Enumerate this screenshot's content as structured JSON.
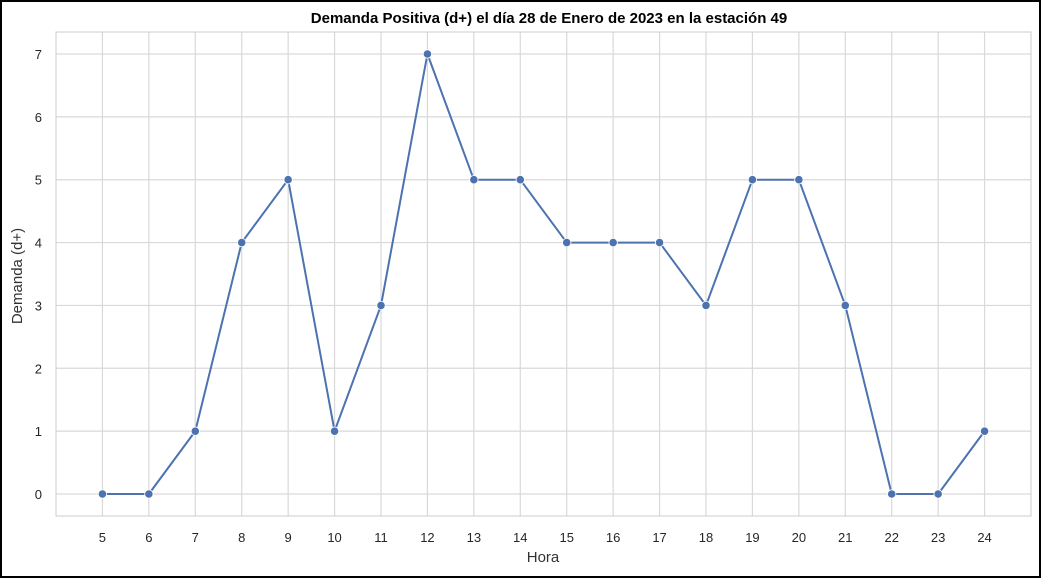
{
  "chart_data": {
    "type": "line",
    "title": "Demanda Positiva (d+) el día 28 de Enero de 2023 en la estación 49",
    "xlabel": "Hora",
    "ylabel": "Demanda (d+)",
    "x": [
      5,
      6,
      7,
      8,
      9,
      10,
      11,
      12,
      13,
      14,
      15,
      16,
      17,
      18,
      19,
      20,
      21,
      22,
      23,
      24
    ],
    "y": [
      0,
      0,
      1,
      4,
      5,
      1,
      3,
      7,
      5,
      5,
      4,
      4,
      4,
      3,
      5,
      5,
      3,
      0,
      0,
      1
    ],
    "xlim": [
      4,
      25
    ],
    "ylim": [
      -0.35,
      7.35
    ],
    "yticks": [
      0,
      1,
      2,
      3,
      4,
      5,
      6,
      7
    ],
    "grid": true,
    "marker": "circle",
    "colors": {
      "line": "#4c72b0",
      "grid": "#d9d9d9",
      "axes_edge": "#cccccc"
    }
  }
}
